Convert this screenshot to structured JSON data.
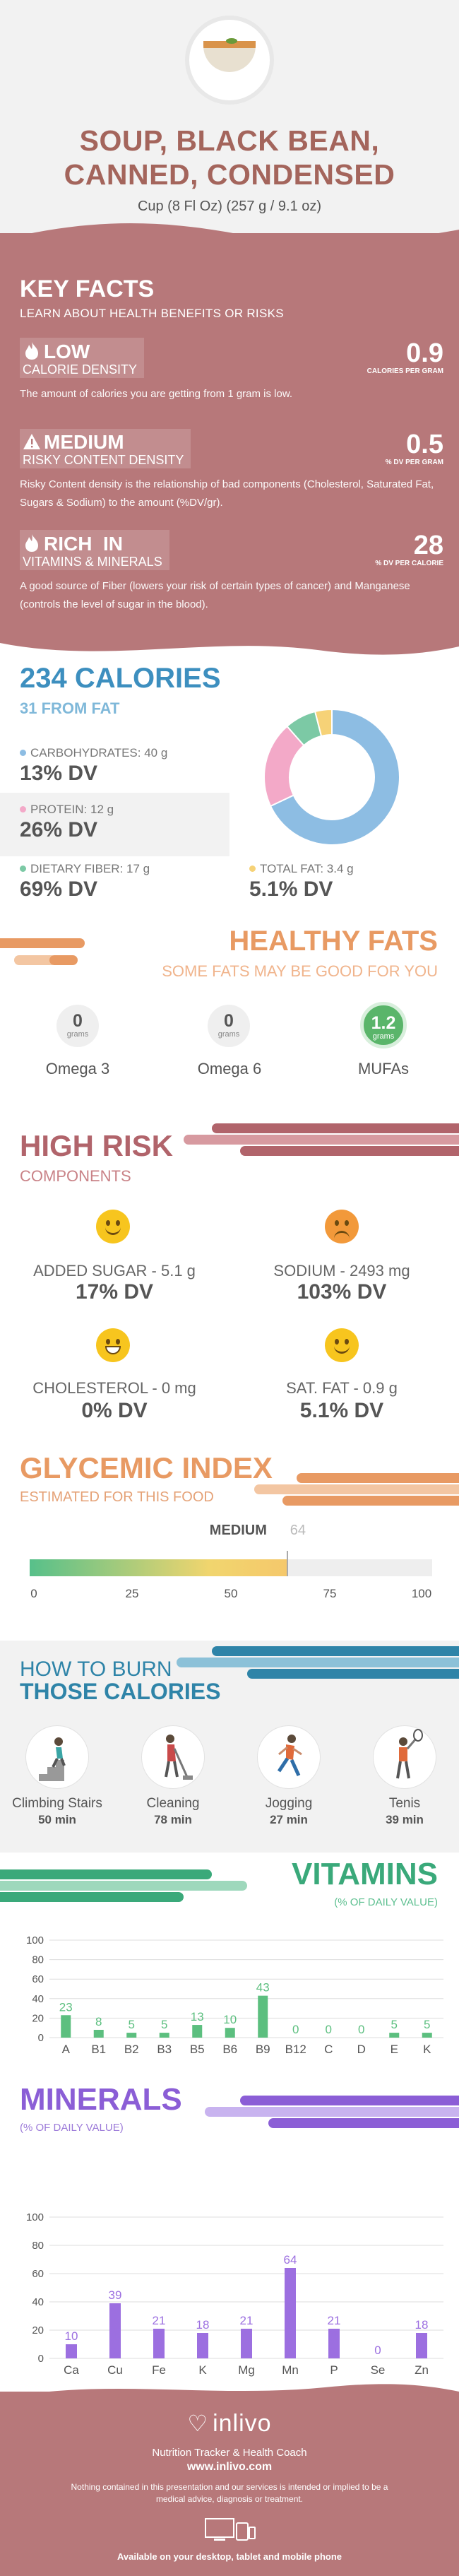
{
  "header": {
    "title_line1": "SOUP, BLACK BEAN,",
    "title_line2": "CANNED, CONDENSED",
    "serving": "Cup (8 Fl Oz) (257 g / 9.1 oz)"
  },
  "key_facts": {
    "title": "KEY FACTS",
    "subtitle": "LEARN ABOUT HEALTH BENEFITS OR RISKS",
    "items": [
      {
        "level": "LOW",
        "label": "CALORIE DENSITY",
        "value": "0.9",
        "unit": "CALORIES PER GRAM",
        "description": "The amount of calories you are getting from 1 gram is low.",
        "icon": "flame-icon"
      },
      {
        "level": "MEDIUM",
        "label": "RISKY CONTENT DENSITY",
        "value": "0.5",
        "unit": "% DV PER GRAM",
        "description": "Risky Content density is the relationship of bad components (Cholesterol, Saturated Fat, Sugars & Sodium) to the amount (%DV/gr).",
        "icon": "warning-icon"
      },
      {
        "level": "RICH  IN",
        "label": "VITAMINS & MINERALS",
        "value": "28",
        "unit": "% DV PER CALORIE",
        "description": "A good source of Fiber (lowers your risk of certain types of cancer) and Manganese (controls the level of sugar in the blood).",
        "icon": "flame-icon"
      }
    ]
  },
  "calories": {
    "title": "234 CALORIES",
    "subtitle": "31 FROM FAT",
    "nutrients": [
      {
        "label": "CARBOHYDRATES: 40 g",
        "dv": "13% DV",
        "color": "#8dbde3"
      },
      {
        "label": "PROTEIN: 12 g",
        "dv": "26% DV",
        "color": "#f3a9c8"
      },
      {
        "label": "DIETARY FIBER: 17 g",
        "dv": "69% DV",
        "color": "#7cc9a5"
      },
      {
        "label": "TOTAL FAT: 3.4 g",
        "dv": "5.1% DV",
        "color": "#f6d277"
      }
    ],
    "donut_shares": [
      0.68,
      0.205,
      0.075,
      0.04
    ]
  },
  "healthy_fats": {
    "title": "HEALTHY FATS",
    "subtitle": "SOME FATS MAY BE GOOD FOR YOU",
    "items": [
      {
        "value": "0",
        "unit": "grams",
        "name": "Omega 3"
      },
      {
        "value": "0",
        "unit": "grams",
        "name": "Omega 6"
      },
      {
        "value": "1.2",
        "unit": "grams",
        "name": "MUFAs"
      }
    ]
  },
  "high_risk": {
    "title": "HIGH RISK",
    "subtitle": "COMPONENTS",
    "items": [
      {
        "label": "ADDED SUGAR - 5.1 g",
        "dv": "17% DV",
        "icon": "smiley-happy-icon"
      },
      {
        "label": "SODIUM - 2493 mg",
        "dv": "103% DV",
        "icon": "smiley-sad-icon"
      },
      {
        "label": "CHOLESTEROL - 0 mg",
        "dv": "0% DV",
        "icon": "smiley-grin-icon"
      },
      {
        "label": "SAT. FAT - 0.9 g",
        "dv": "5.1% DV",
        "icon": "smiley-happy-icon"
      }
    ]
  },
  "glycemic": {
    "title": "GLYCEMIC INDEX",
    "subtitle": "ESTIMATED FOR THIS FOOD",
    "level": "MEDIUM",
    "value": 64,
    "value_label": "64",
    "ticks": [
      "0",
      "25",
      "50",
      "75",
      "100"
    ]
  },
  "burn": {
    "title_line1": "HOW TO BURN",
    "title_line2": "THOSE CALORIES",
    "activities": [
      {
        "name": "Climbing Stairs",
        "minutes": "50 min",
        "icon": "stairs-climber-icon"
      },
      {
        "name": "Cleaning",
        "minutes": "78 min",
        "icon": "cleaning-person-icon"
      },
      {
        "name": "Jogging",
        "minutes": "27 min",
        "icon": "jogger-icon"
      },
      {
        "name": "Tenis",
        "minutes": "39 min",
        "icon": "tennis-player-icon"
      }
    ]
  },
  "vitamins": {
    "title": "VITAMINS",
    "subtitle": "(% OF DAILY VALUE)",
    "color": "#5cbf7f"
  },
  "minerals": {
    "title": "MINERALS",
    "subtitle": "(% OF DAILY VALUE)",
    "color": "#9c6fe0"
  },
  "chart_data": [
    {
      "type": "bar",
      "title": "VITAMINS",
      "categories": [
        "A",
        "B1",
        "B2",
        "B3",
        "B5",
        "B6",
        "B9",
        "B12",
        "C",
        "D",
        "E",
        "K"
      ],
      "values": [
        23,
        8,
        5,
        5,
        13,
        10,
        43,
        0,
        0,
        0,
        5,
        5
      ],
      "ylim": [
        0,
        100
      ],
      "yticks": [
        "0",
        "20",
        "40",
        "60",
        "80",
        "100"
      ],
      "grid": true
    },
    {
      "type": "bar",
      "title": "MINERALS",
      "categories": [
        "Ca",
        "Cu",
        "Fe",
        "K",
        "Mg",
        "Mn",
        "P",
        "Se",
        "Zn"
      ],
      "values": [
        10,
        39,
        21,
        18,
        21,
        64,
        21,
        0,
        18
      ],
      "ylim": [
        0,
        100
      ],
      "yticks": [
        "0",
        "20",
        "40",
        "60",
        "80",
        "100"
      ],
      "grid": true
    }
  ],
  "footer": {
    "brand": "inlivo",
    "tagline": "Nutrition Tracker & Health Coach",
    "site": "www.inlivo.com",
    "disclaimer": "Nothing contained in this presentation and our services is intended or implied to be a medical advice, diagnosis or treatment.",
    "availability": "Available on your desktop, tablet and mobile phone"
  }
}
